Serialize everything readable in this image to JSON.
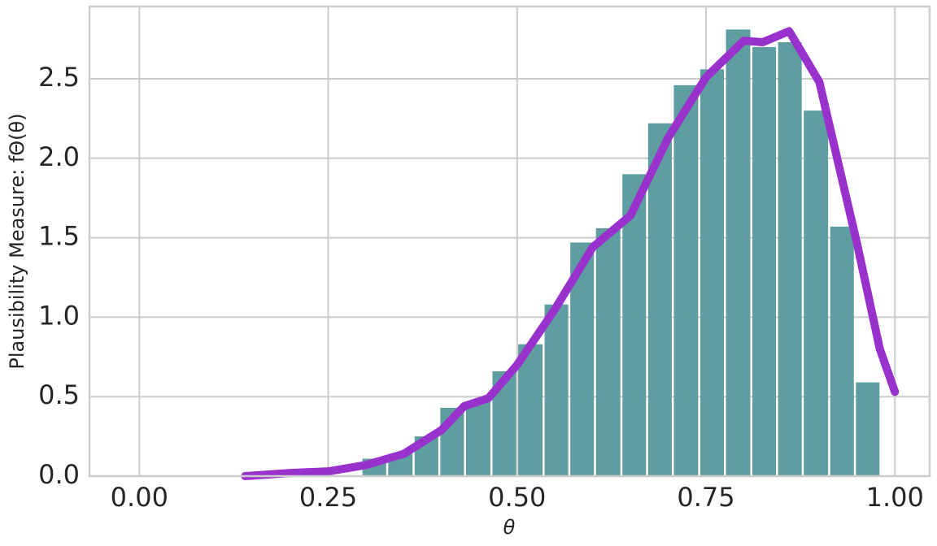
{
  "chart_data": {
    "type": "histogram",
    "x_label": "θ",
    "y_label": "Plausibility Measure: fΘ(θ)",
    "bins": [
      0.294,
      0.328,
      0.363,
      0.397,
      0.431,
      0.466,
      0.5,
      0.535,
      0.569,
      0.603,
      0.638,
      0.672,
      0.706,
      0.741,
      0.775,
      0.81,
      0.844,
      0.878,
      0.913,
      0.947,
      0.981
    ],
    "values": [
      0.11,
      0.14,
      0.25,
      0.43,
      0.47,
      0.66,
      0.83,
      1.08,
      1.47,
      1.56,
      1.9,
      2.22,
      2.46,
      2.56,
      2.81,
      2.7,
      2.73,
      2.3,
      1.57,
      0.59
    ],
    "color": "#5f9ea0",
    "kde": {
      "color": "#9932cc",
      "x": [
        0.14,
        0.2,
        0.25,
        0.3,
        0.35,
        0.4,
        0.43,
        0.462,
        0.5,
        0.55,
        0.6,
        0.65,
        0.7,
        0.75,
        0.8,
        0.825,
        0.86,
        0.9,
        0.95,
        0.98,
        1.0
      ],
      "values": [
        0.0,
        0.02,
        0.03,
        0.07,
        0.14,
        0.29,
        0.44,
        0.49,
        0.7,
        1.05,
        1.44,
        1.64,
        2.13,
        2.51,
        2.74,
        2.73,
        2.8,
        2.48,
        1.46,
        0.8,
        0.53
      ]
    },
    "xlim": [
      -0.066,
      1.046
    ],
    "ylim": [
      0,
      2.955
    ],
    "xticks": [
      {
        "value": 0,
        "label": "0.00"
      },
      {
        "value": 0.25,
        "label": "0.25"
      },
      {
        "value": 0.5,
        "label": "0.50"
      },
      {
        "value": 0.75,
        "label": "0.75"
      },
      {
        "value": 1,
        "label": "1.00"
      }
    ],
    "yticks": [
      {
        "value": 0,
        "label": "0.0"
      },
      0.5,
      {
        "value": 1,
        "label": "1.0"
      },
      1.5,
      {
        "value": 2,
        "label": "2.0"
      },
      2.5
    ],
    "grid": true
  }
}
